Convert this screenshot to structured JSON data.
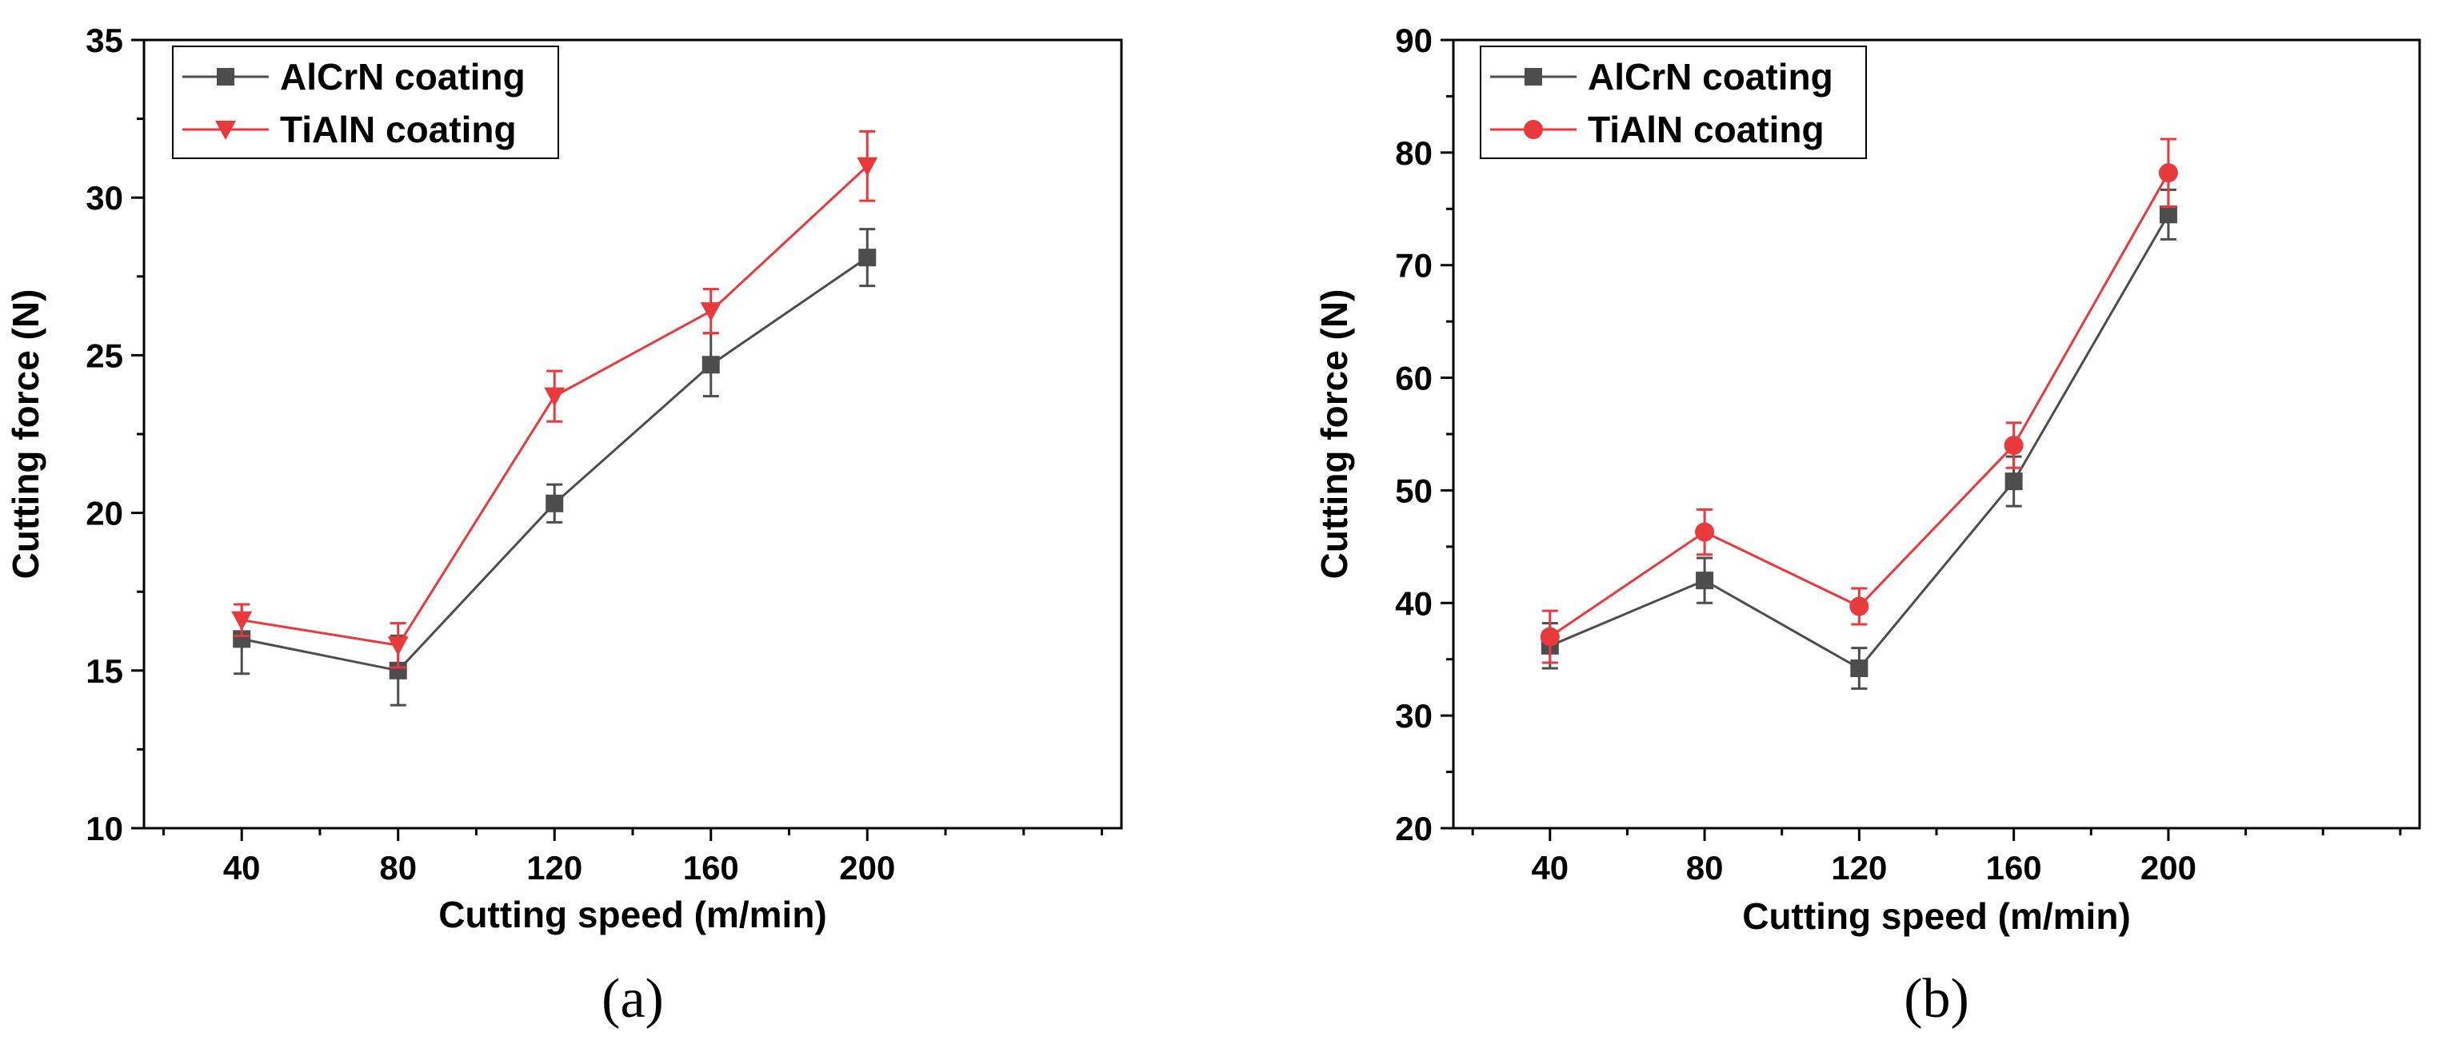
{
  "chart_data": [
    {
      "type": "line",
      "panel_label": "(a)",
      "title": "",
      "xlabel": "Cutting speed (m/min)",
      "ylabel": "Cutting force (N)",
      "xlim": [
        15,
        265
      ],
      "ylim": [
        10,
        35
      ],
      "x_ticks": [
        40,
        80,
        120,
        160,
        200
      ],
      "y_ticks": [
        10,
        15,
        20,
        25,
        30,
        35
      ],
      "legend_position": "top-left",
      "grid": false,
      "x": [
        40,
        80,
        120,
        160,
        200
      ],
      "series": [
        {
          "name": "AlCrN coating",
          "color": "#4d4d4d",
          "marker": "square",
          "values": [
            16.0,
            15.0,
            20.3,
            24.7,
            28.1
          ],
          "errors": [
            1.1,
            1.1,
            0.6,
            1.0,
            0.9
          ]
        },
        {
          "name": "TiAlN coating",
          "color": "#e8393d",
          "marker": "triangle-down",
          "values": [
            16.6,
            15.8,
            23.7,
            26.4,
            31.0
          ],
          "errors": [
            0.5,
            0.7,
            0.8,
            0.7,
            1.1
          ]
        }
      ]
    },
    {
      "type": "line",
      "panel_label": "(b)",
      "title": "",
      "xlabel": "Cutting speed (m/min)",
      "ylabel": "Cutting force (N)",
      "xlim": [
        15,
        265
      ],
      "ylim": [
        20,
        90
      ],
      "x_ticks": [
        40,
        80,
        120,
        160,
        200
      ],
      "y_ticks": [
        20,
        30,
        40,
        50,
        60,
        70,
        80,
        90
      ],
      "legend_position": "top-left",
      "grid": false,
      "x": [
        40,
        80,
        120,
        160,
        200
      ],
      "series": [
        {
          "name": "AlCrN coating",
          "color": "#4d4d4d",
          "marker": "square",
          "values": [
            36.2,
            42.0,
            34.2,
            50.8,
            74.5
          ],
          "errors": [
            2.0,
            2.0,
            1.8,
            2.2,
            2.2
          ]
        },
        {
          "name": "TiAlN coating",
          "color": "#e8393d",
          "marker": "circle",
          "values": [
            37.0,
            46.3,
            39.7,
            54.0,
            78.2
          ],
          "errors": [
            2.3,
            2.0,
            1.6,
            2.0,
            3.0
          ]
        }
      ]
    }
  ]
}
